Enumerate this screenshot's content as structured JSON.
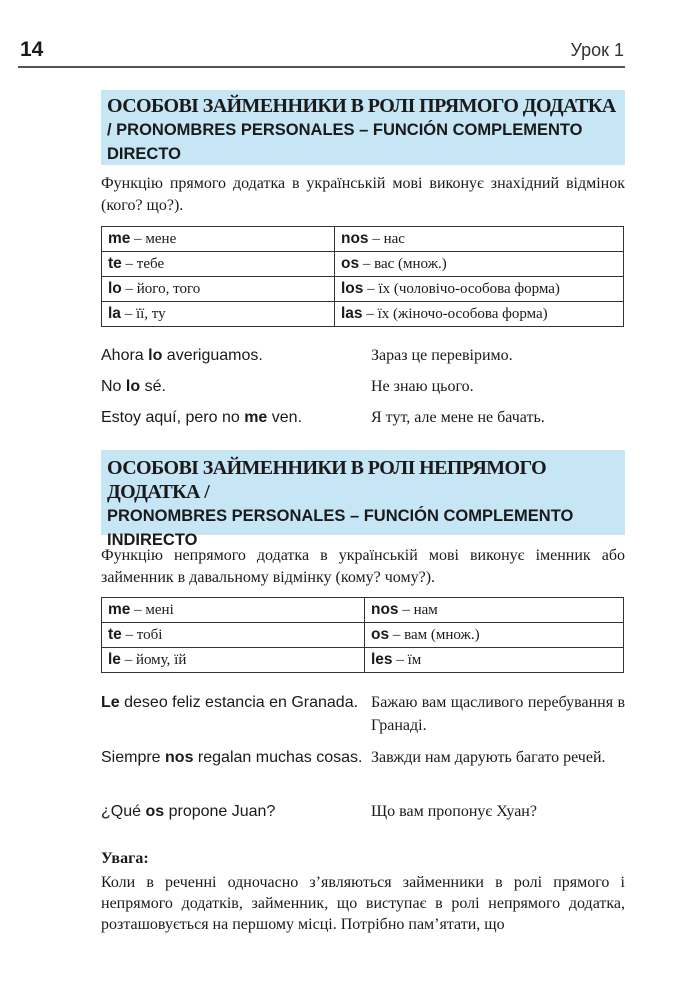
{
  "header": {
    "page_number": "14",
    "lesson": "Урок 1"
  },
  "section1": {
    "title_ua": "ОСОБОВІ ЗАЙМЕННИКИ В РОЛІ ПРЯМОГО ДОДАТКА",
    "title_es": "/ PRONOMBRES PERSONALES – FUNCIÓN COMPLEMENTO DIRECTO",
    "intro": "Функцію прямого додатка в українській мові виконує знахідний відмінок (кого? що?).",
    "table": [
      [
        {
          "pron": "me",
          "tr": " – мене"
        },
        {
          "pron": "nos",
          "tr": " – нас"
        }
      ],
      [
        {
          "pron": "te",
          "tr": " – тебе"
        },
        {
          "pron": "os",
          "tr": " – вас (множ.)"
        }
      ],
      [
        {
          "pron": "lo",
          "tr": " – його, того"
        },
        {
          "pron": "los",
          "tr": " – їх (чоловічо-особова форма)"
        }
      ],
      [
        {
          "pron": "la",
          "tr": " – її, ту"
        },
        {
          "pron": "las",
          "tr": " – їх (жіночо-особова форма)"
        }
      ]
    ],
    "examples": [
      {
        "es_pre": "Ahora ",
        "es_bold": "lo",
        "es_post": " averiguamos.",
        "ua": "Зараз це перевіримо."
      },
      {
        "es_pre": "No ",
        "es_bold": "lo",
        "es_post": " sé.",
        "ua": "Не знаю цього."
      },
      {
        "es_pre": "Estoy aquí, pero no ",
        "es_bold": "me",
        "es_post": " ven.",
        "ua": "Я тут, але мене не бачать."
      }
    ]
  },
  "section2": {
    "title_ua": "ОСОБОВІ ЗАЙМЕННИКИ В РОЛІ НЕПРЯМОГО ДОДАТКА /",
    "title_es": "PRONOMBRES PERSONALES – FUNCIÓN COMPLEMENTO INDIRECTO",
    "intro": "Функцію непрямого додатка в українській мові виконує іменник або займенник в давальному відмінку (кому? чому?).",
    "table": [
      [
        {
          "pron": "me",
          "tr": " – мені"
        },
        {
          "pron": "nos",
          "tr": " – нам"
        }
      ],
      [
        {
          "pron": "te",
          "tr": " – тобі"
        },
        {
          "pron": "os",
          "tr": " – вам (множ.)"
        }
      ],
      [
        {
          "pron": "le",
          "tr": " – йому, їй"
        },
        {
          "pron": "les",
          "tr": " – їм"
        }
      ]
    ],
    "examples": [
      {
        "es_pre": "",
        "es_bold": "Le",
        "es_post": " deseo feliz estancia en Granada.",
        "ua": "Бажаю вам щасливого перебування в Гранаді."
      },
      {
        "es_pre": "Siempre ",
        "es_bold": "nos",
        "es_post": " regalan muchas cosas.",
        "ua": "Завжди нам дарують багато речей."
      },
      {
        "es_pre": "¿Qué ",
        "es_bold": "os",
        "es_post": " propone Juan?",
        "ua": "Що вам пропонує Хуан?"
      }
    ]
  },
  "note": {
    "title": "Увага:",
    "text": "Коли в реченні одночасно з’являються займенники в ролі прямого і непрямого додатків, займенник, що виступає в ролі непрямого додатка, розташовується на першому місці. Потрібно пам’ятати, що"
  }
}
